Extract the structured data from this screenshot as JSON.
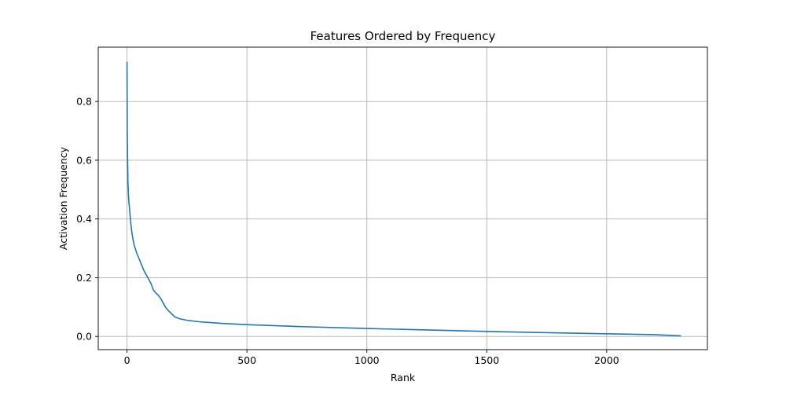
{
  "chart_data": {
    "type": "line",
    "title": "Features Ordered by Frequency",
    "xlabel": "Rank",
    "ylabel": "Activation Frequency",
    "xlim": [
      -120,
      2420
    ],
    "ylim": [
      -0.045,
      0.985
    ],
    "x_ticks": [
      0,
      500,
      1000,
      1500,
      2000
    ],
    "y_ticks": [
      0.0,
      0.2,
      0.4,
      0.6,
      0.8
    ],
    "x_tick_labels": [
      "0",
      "500",
      "1000",
      "1500",
      "2000"
    ],
    "y_tick_labels": [
      "0.0",
      "0.2",
      "0.4",
      "0.6",
      "0.8"
    ],
    "grid": true,
    "series": [
      {
        "color": "#1f77b4",
        "x": [
          0,
          1,
          2,
          3,
          4,
          6,
          8,
          10,
          12,
          15,
          20,
          25,
          30,
          40,
          50,
          60,
          70,
          80,
          90,
          100,
          110,
          120,
          130,
          140,
          150,
          160,
          170,
          180,
          190,
          200,
          220,
          250,
          300,
          400,
          500,
          700,
          1000,
          1300,
          1500,
          1800,
          2000,
          2200,
          2310
        ],
        "y": [
          0.935,
          0.7,
          0.62,
          0.57,
          0.52,
          0.48,
          0.455,
          0.44,
          0.42,
          0.39,
          0.355,
          0.33,
          0.31,
          0.285,
          0.265,
          0.245,
          0.225,
          0.21,
          0.195,
          0.18,
          0.158,
          0.148,
          0.14,
          0.13,
          0.115,
          0.1,
          0.09,
          0.082,
          0.074,
          0.066,
          0.06,
          0.055,
          0.05,
          0.044,
          0.04,
          0.034,
          0.027,
          0.021,
          0.017,
          0.012,
          0.009,
          0.006,
          0.002
        ]
      }
    ]
  }
}
